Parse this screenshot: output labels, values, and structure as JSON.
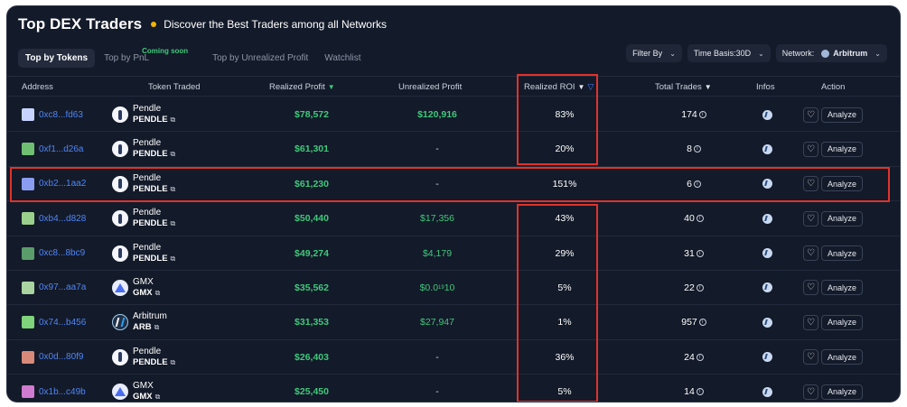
{
  "header": {
    "title": "Top DEX Traders",
    "subtitle": "Discover the Best Traders among all Networks"
  },
  "tabs": [
    {
      "label": "Top by Tokens",
      "active": true
    },
    {
      "label": "Top by PnL",
      "badge": "Coming soon"
    },
    {
      "label": "Top by Unrealized Profit"
    },
    {
      "label": "Watchlist"
    }
  ],
  "filters": {
    "filter_by": "Filter By",
    "time_basis": "Time Basis:30D",
    "network_label": "Network:",
    "network_value": "Arbitrum"
  },
  "columns": {
    "address": "Address",
    "token": "Token Traded",
    "realized_profit": "Realized Profit",
    "unrealized_profit": "Unrealized Profit",
    "realized_roi": "Realized ROI",
    "total_trades": "Total Trades",
    "infos": "Infos",
    "action": "Action"
  },
  "actions": {
    "analyze": "Analyze",
    "heart": "♡"
  },
  "rows": [
    {
      "address": "0xc8...fd63",
      "avatar_color": "#c7d4ff",
      "token_name": "Pendle",
      "token_symbol": "PENDLE",
      "token_icon": "pendle-icon",
      "realized_profit": "$78,572",
      "unrealized_profit": "$120,916",
      "realized_roi": "83%",
      "total_trades": "174"
    },
    {
      "address": "0xf1...d26a",
      "avatar_color": "#6fbf73",
      "token_name": "Pendle",
      "token_symbol": "PENDLE",
      "token_icon": "pendle-icon",
      "realized_profit": "$61,301",
      "unrealized_profit": "-",
      "realized_roi": "20%",
      "total_trades": "8"
    },
    {
      "address": "0xb2...1aa2",
      "avatar_color": "#8a9cf0",
      "token_name": "Pendle",
      "token_symbol": "PENDLE",
      "token_icon": "pendle-icon",
      "realized_profit": "$61,230",
      "unrealized_profit": "-",
      "realized_roi": "151%",
      "total_trades": "6"
    },
    {
      "address": "0xb4...d828",
      "avatar_color": "#9bd08c",
      "token_name": "Pendle",
      "token_symbol": "PENDLE",
      "token_icon": "pendle-icon",
      "realized_profit": "$50,440",
      "unrealized_profit": "$17,356",
      "realized_roi": "43%",
      "total_trades": "40"
    },
    {
      "address": "0xc8...8bc9",
      "avatar_color": "#5a9c6a",
      "token_name": "Pendle",
      "token_symbol": "PENDLE",
      "token_icon": "pendle-icon",
      "realized_profit": "$49,274",
      "unrealized_profit": "$4,179",
      "realized_roi": "29%",
      "total_trades": "31"
    },
    {
      "address": "0x97...aa7a",
      "avatar_color": "#a9d3a0",
      "token_name": "GMX",
      "token_symbol": "GMX",
      "token_icon": "gmx-icon",
      "realized_profit": "$35,562",
      "unrealized_profit_prefix": "$0.0",
      "unrealized_profit_sub": "19",
      "unrealized_profit_suffix": "10",
      "realized_roi": "5%",
      "total_trades": "22"
    },
    {
      "address": "0x74...b456",
      "avatar_color": "#7fd37a",
      "token_name": "Arbitrum",
      "token_symbol": "ARB",
      "token_icon": "arbitrum-icon",
      "realized_profit": "$31,353",
      "unrealized_profit": "$27,947",
      "realized_roi": "1%",
      "total_trades": "957"
    },
    {
      "address": "0x0d...80f9",
      "avatar_color": "#d88a7a",
      "token_name": "Pendle",
      "token_symbol": "PENDLE",
      "token_icon": "pendle-icon",
      "realized_profit": "$26,403",
      "unrealized_profit": "-",
      "realized_roi": "36%",
      "total_trades": "24"
    },
    {
      "address": "0x1b...c49b",
      "avatar_color": "#d07ad0",
      "token_name": "GMX",
      "token_symbol": "GMX",
      "token_icon": "gmx-icon",
      "realized_profit": "$25,450",
      "unrealized_profit": "-",
      "realized_roi": "5%",
      "total_trades": "14"
    }
  ],
  "colors": {
    "background": "#131a29",
    "profit_green": "#3fc97a",
    "address_blue": "#4f86f7",
    "highlight_red": "#e0322c",
    "coming_soon_green": "#3fc97a"
  }
}
